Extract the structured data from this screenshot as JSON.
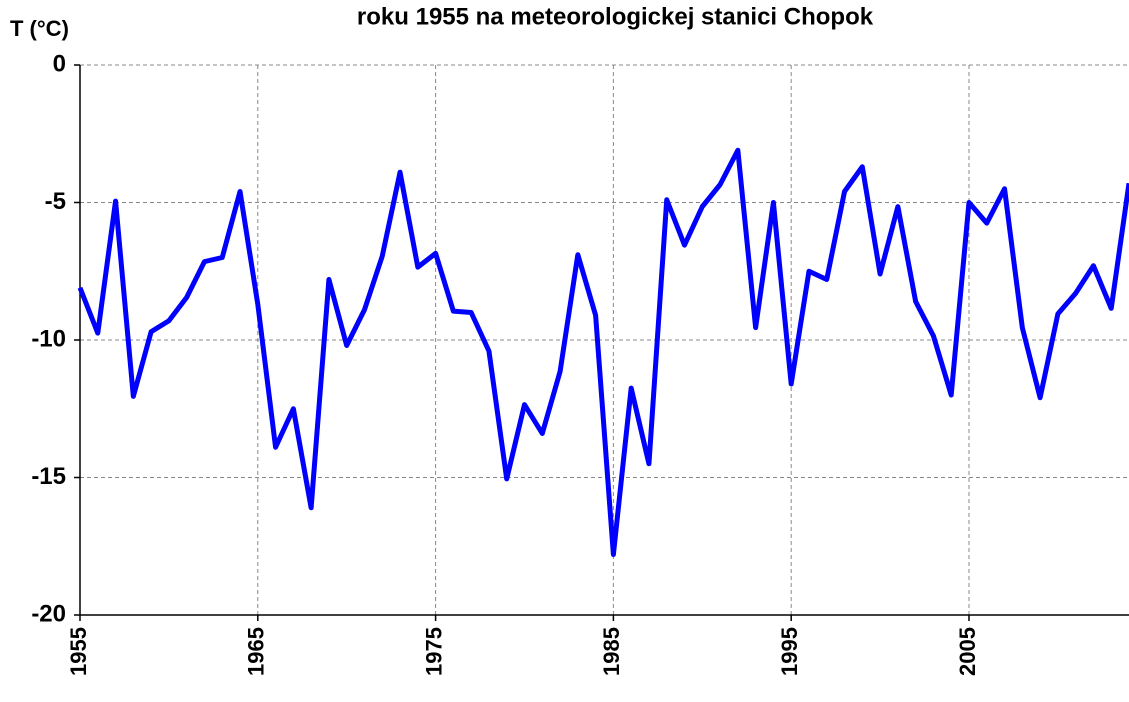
{
  "chart_data": {
    "type": "line",
    "title": "roku 1955  na meteorologickej stanici Chopok",
    "y_label": "T (°C)",
    "x": [
      1955,
      1956,
      1957,
      1958,
      1959,
      1960,
      1961,
      1962,
      1963,
      1964,
      1965,
      1966,
      1967,
      1968,
      1969,
      1970,
      1971,
      1972,
      1973,
      1974,
      1975,
      1976,
      1977,
      1978,
      1979,
      1980,
      1981,
      1982,
      1983,
      1984,
      1985,
      1986,
      1987,
      1988,
      1989,
      1990,
      1991,
      1992,
      1993,
      1994,
      1995,
      1996,
      1997,
      1998,
      1999,
      2000,
      2001,
      2002,
      2003,
      2004,
      2005,
      2006,
      2007,
      2008,
      2009,
      2010,
      2011,
      2012,
      2013,
      2014
    ],
    "series": [
      {
        "name": "T",
        "color": "#0000ff",
        "values": [
          -8.1,
          -9.75,
          -4.95,
          -12.05,
          -9.7,
          -9.3,
          -8.45,
          -7.15,
          -7.0,
          -4.6,
          -8.7,
          -13.9,
          -12.5,
          -16.1,
          -7.8,
          -10.2,
          -8.9,
          -6.95,
          -3.9,
          -7.35,
          -6.85,
          -8.95,
          -9.0,
          -10.4,
          -15.05,
          -12.35,
          -13.4,
          -11.15,
          -6.9,
          -9.1,
          -17.8,
          -11.75,
          -14.5,
          -4.9,
          -6.55,
          -5.15,
          -4.35,
          -3.1,
          -9.55,
          -5.0,
          -11.6,
          -7.5,
          -7.8,
          -4.6,
          -3.7,
          -7.6,
          -5.15,
          -8.6,
          -9.85,
          -12.0,
          -5.0,
          -5.75,
          -4.5,
          -9.55,
          -12.1,
          -9.05,
          -8.3,
          -7.3,
          -8.85,
          -4.3
        ]
      }
    ],
    "xlim": [
      1955,
      2014
    ],
    "xticks": [
      1955,
      1965,
      1975,
      1985,
      1995,
      2005
    ],
    "ylim": [
      -20,
      0
    ],
    "yticks": [
      0,
      -5,
      -10,
      -15,
      -20
    ],
    "grid": true
  }
}
